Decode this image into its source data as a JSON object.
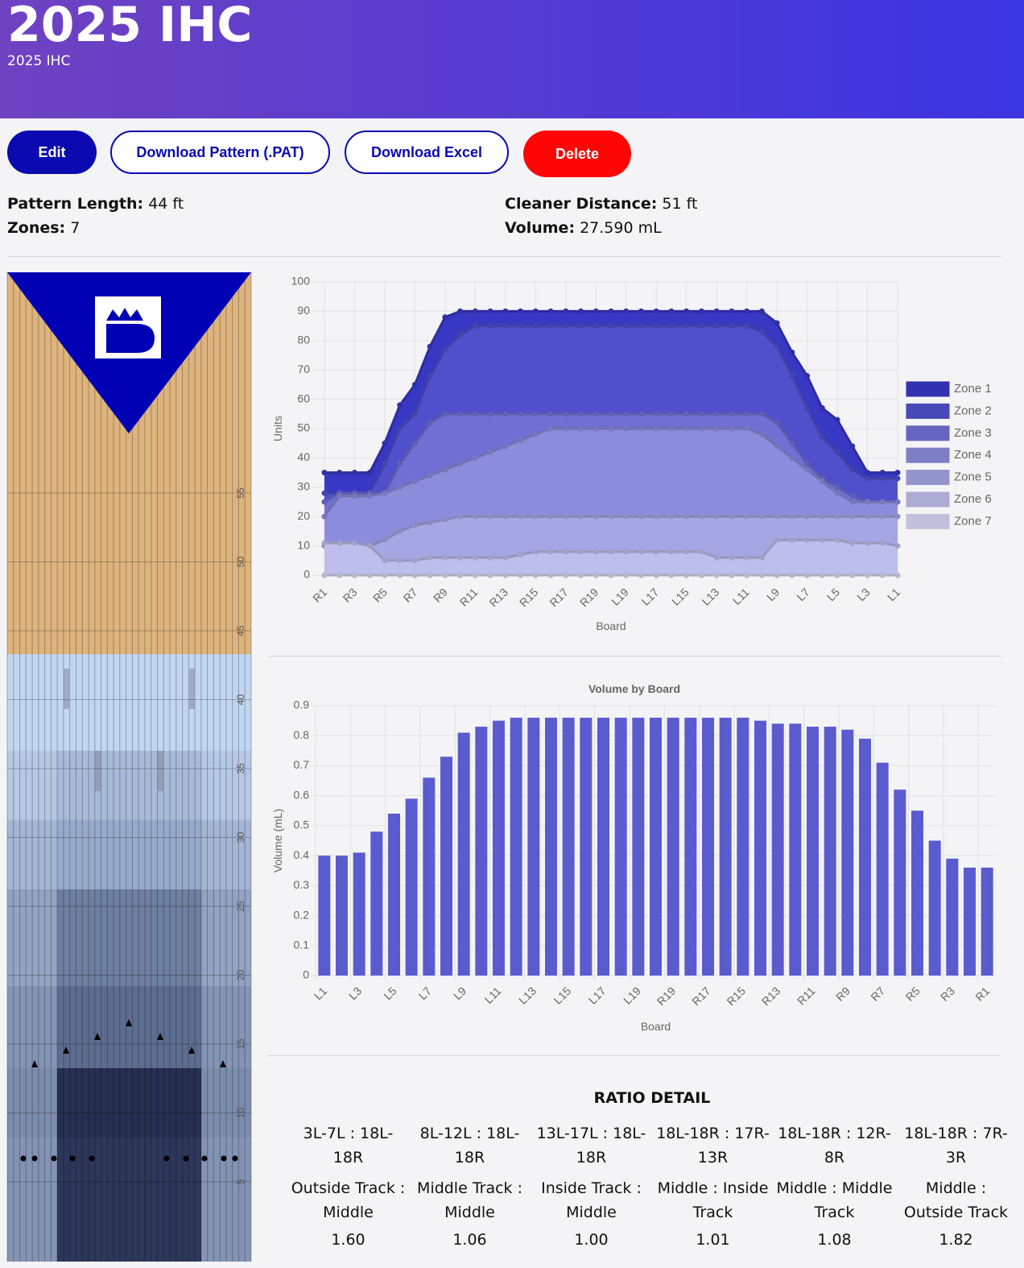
{
  "header": {
    "title": "2025 IHC",
    "subtitle": "2025 IHC"
  },
  "buttons": [
    "Edit",
    "Download Pattern (.PAT)",
    "Download Excel",
    "Delete"
  ],
  "info": [
    {
      "label": "Pattern Length:",
      "value": "44 ft"
    },
    {
      "label": "Zones:",
      "value": "7"
    },
    {
      "label": "Cleaner Distance:",
      "value": "51 ft"
    },
    {
      "label": "Volume:",
      "value": "27.590 mL"
    }
  ],
  "lane": {
    "distance_labels": [
      55,
      50,
      45,
      40,
      35,
      30,
      25,
      20,
      15,
      10,
      5
    ]
  },
  "chart_data": [
    {
      "type": "area",
      "y_label": "Units",
      "x_label": "Board",
      "grid": true,
      "legend": "right",
      "categories": [
        "R1",
        null,
        "R3",
        null,
        "R5",
        null,
        "R7",
        null,
        "R9",
        null,
        "R11",
        null,
        "R13",
        null,
        "R15",
        null,
        "R17",
        null,
        "R19",
        null,
        "L19",
        null,
        "L17",
        null,
        "L15",
        null,
        "L13",
        null,
        "L11",
        null,
        "L9",
        null,
        "L7",
        null,
        "L5",
        null,
        "L3",
        null,
        "L1"
      ],
      "ylim": [
        0,
        100
      ],
      "yticks": [
        0,
        10,
        20,
        30,
        40,
        50,
        60,
        70,
        80,
        90,
        100
      ],
      "series": [
        {
          "name": "Zone 1",
          "color": "#3838c4",
          "values": [
            35,
            35,
            35,
            35,
            45,
            58,
            65,
            78,
            88,
            90,
            90,
            90,
            90,
            90,
            90,
            90,
            90,
            90,
            90,
            90,
            90,
            90,
            90,
            90,
            90,
            90,
            90,
            90,
            90,
            90,
            86,
            76,
            68,
            57,
            53,
            44,
            35,
            35,
            35
          ]
        },
        {
          "name": "Zone 2",
          "color": "#5050cc",
          "values": [
            28,
            28,
            28,
            28,
            38,
            50,
            55,
            68,
            77,
            82,
            85,
            85,
            85,
            85,
            85,
            85,
            85,
            85,
            85,
            85,
            85,
            85,
            85,
            85,
            85,
            85,
            85,
            85,
            85,
            83,
            78,
            68,
            57,
            47,
            42,
            36,
            33,
            33,
            33
          ]
        },
        {
          "name": "Zone 3",
          "color": "#7070d4",
          "values": [
            25,
            28,
            28,
            28,
            28,
            38,
            45,
            52,
            55,
            55,
            55,
            55,
            55,
            55,
            55,
            55,
            55,
            55,
            55,
            55,
            55,
            55,
            55,
            55,
            55,
            55,
            55,
            55,
            55,
            55,
            52,
            45,
            38,
            33,
            30,
            27,
            25,
            25,
            25
          ]
        },
        {
          "name": "Zone 4",
          "color": "#8c8cdc",
          "values": [
            20,
            27,
            27,
            27,
            28,
            30,
            32,
            34,
            36,
            38,
            40,
            42,
            44,
            46,
            48,
            50,
            50,
            50,
            50,
            50,
            50,
            50,
            50,
            50,
            50,
            50,
            50,
            50,
            50,
            48,
            44,
            40,
            36,
            32,
            28,
            25,
            25,
            25,
            25
          ]
        },
        {
          "name": "Zone 5",
          "color": "#a6a6e4",
          "values": [
            10,
            10,
            10,
            10,
            12,
            15,
            17,
            18,
            19,
            20,
            20,
            20,
            20,
            20,
            20,
            20,
            20,
            20,
            20,
            20,
            20,
            20,
            20,
            20,
            20,
            20,
            20,
            20,
            20,
            20,
            20,
            20,
            20,
            20,
            20,
            20,
            20,
            20,
            20
          ]
        },
        {
          "name": "Zone 6",
          "color": "#bebeec",
          "values": [
            11,
            11,
            11,
            10,
            5,
            5,
            5,
            6,
            6,
            6,
            6,
            6,
            6,
            7,
            8,
            8,
            8,
            8,
            8,
            8,
            8,
            8,
            8,
            8,
            8,
            8,
            6,
            6,
            6,
            6,
            12,
            12,
            12,
            12,
            12,
            11,
            11,
            11,
            10
          ]
        },
        {
          "name": "Zone 7",
          "color": "#d6d6f4",
          "values": [
            0,
            0,
            0,
            0,
            0,
            0,
            0,
            0,
            0,
            0,
            0,
            0,
            0,
            0,
            0,
            0,
            0,
            0,
            0,
            0,
            0,
            0,
            0,
            0,
            0,
            0,
            0,
            0,
            0,
            0,
            0,
            0,
            0,
            0,
            0,
            0,
            0,
            0,
            0
          ]
        }
      ]
    },
    {
      "type": "bar",
      "title": "Volume by Board",
      "y_label": "Volume (mL)",
      "x_label": "Board",
      "grid": true,
      "color": "#5b5bd0",
      "categories": [
        "L1",
        null,
        "L3",
        null,
        "L5",
        null,
        "L7",
        null,
        "L9",
        null,
        "L11",
        null,
        "L13",
        null,
        "L15",
        null,
        "L17",
        null,
        "L19",
        null,
        "R19",
        null,
        "R17",
        null,
        "R15",
        null,
        "R13",
        null,
        "R11",
        null,
        "R9",
        null,
        "R7",
        null,
        "R5",
        null,
        "R3",
        null,
        "R1"
      ],
      "values": [
        0.4,
        0.4,
        0.41,
        0.48,
        0.54,
        0.59,
        0.66,
        0.73,
        0.81,
        0.83,
        0.85,
        0.86,
        0.86,
        0.86,
        0.86,
        0.86,
        0.86,
        0.86,
        0.86,
        0.86,
        0.86,
        0.86,
        0.86,
        0.86,
        0.86,
        0.85,
        0.84,
        0.84,
        0.83,
        0.83,
        0.82,
        0.79,
        0.71,
        0.62,
        0.55,
        0.45,
        0.39,
        0.36,
        0.36
      ],
      "ylim": [
        0,
        0.9
      ],
      "yticks": [
        0,
        0.1,
        0.2,
        0.3,
        0.4,
        0.5,
        0.6,
        0.7,
        0.8,
        0.9
      ]
    }
  ],
  "ratio_detail": {
    "title": "RATIO DETAIL",
    "columns": [
      {
        "ratio": "3L-7L : 18L-18R",
        "track": "Outside Track : Middle",
        "value": "1.60"
      },
      {
        "ratio": "8L-12L : 18L-18R",
        "track": "Middle Track : Middle",
        "value": "1.06"
      },
      {
        "ratio": "13L-17L : 18L-18R",
        "track": "Inside Track : Middle",
        "value": "1.00"
      },
      {
        "ratio": "18L-18R : 17R-13R",
        "track": "Middle : Inside Track",
        "value": "1.01"
      },
      {
        "ratio": "18L-18R : 12R-8R",
        "track": "Middle : Middle Track",
        "value": "1.08"
      },
      {
        "ratio": "18L-18R : 7R-3R",
        "track": "Middle : Outside Track",
        "value": "1.82"
      }
    ]
  }
}
